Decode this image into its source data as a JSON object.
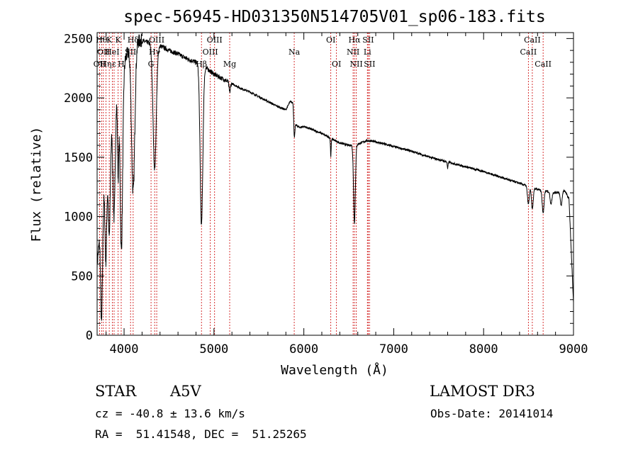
{
  "info": {
    "object_class": "STAR",
    "subclass": "A5V",
    "survey": "LAMOST DR3",
    "velocity": "cz = -40.8 ± 13.6 km/s",
    "obs_date": "Obs-Date: 20141014",
    "coords": "RA =  51.41548, DEC =  51.25265"
  },
  "colors": {
    "spectrum": "#000000",
    "line_marker": "#cc0000",
    "axes": "#000000"
  },
  "chart_data": {
    "type": "line",
    "title": "spec-56945-HD031350N514705V01_sp06-183.fits",
    "xlabel": "Wavelength (Å)",
    "ylabel": "Flux (relative)",
    "xlim": [
      3700,
      9000
    ],
    "ylim": [
      0,
      2550
    ],
    "xticks": [
      4000,
      5000,
      6000,
      7000,
      8000,
      9000
    ],
    "yticks": [
      0,
      500,
      1000,
      1500,
      2000,
      2500
    ],
    "continuum": [
      [
        3700,
        600
      ],
      [
        3750,
        1000
      ],
      [
        3800,
        1450
      ],
      [
        3850,
        1700
      ],
      [
        3900,
        1950
      ],
      [
        3950,
        2150
      ],
      [
        4000,
        2300
      ],
      [
        4050,
        2400
      ],
      [
        4100,
        2450
      ],
      [
        4150,
        2480
      ],
      [
        4200,
        2480
      ],
      [
        4250,
        2470
      ],
      [
        4300,
        2460
      ],
      [
        4350,
        2450
      ],
      [
        4400,
        2440
      ],
      [
        4450,
        2420
      ],
      [
        4500,
        2400
      ],
      [
        4600,
        2370
      ],
      [
        4700,
        2330
      ],
      [
        4800,
        2300
      ],
      [
        4900,
        2260
      ],
      [
        5000,
        2200
      ],
      [
        5100,
        2160
      ],
      [
        5200,
        2120
      ],
      [
        5300,
        2080
      ],
      [
        5400,
        2050
      ],
      [
        5500,
        2010
      ],
      [
        5600,
        1970
      ],
      [
        5700,
        1930
      ],
      [
        5800,
        1900
      ],
      [
        5850,
        1970
      ],
      [
        5880,
        1960
      ],
      [
        5900,
        1780
      ],
      [
        5950,
        1750
      ],
      [
        6000,
        1760
      ],
      [
        6100,
        1730
      ],
      [
        6200,
        1700
      ],
      [
        6300,
        1660
      ],
      [
        6400,
        1620
      ],
      [
        6500,
        1600
      ],
      [
        6600,
        1610
      ],
      [
        6700,
        1640
      ],
      [
        6800,
        1630
      ],
      [
        7000,
        1590
      ],
      [
        7200,
        1550
      ],
      [
        7400,
        1500
      ],
      [
        7600,
        1460
      ],
      [
        7800,
        1420
      ],
      [
        8000,
        1380
      ],
      [
        8200,
        1330
      ],
      [
        8400,
        1280
      ],
      [
        8600,
        1230
      ],
      [
        8800,
        1200
      ],
      [
        8900,
        1220
      ],
      [
        8950,
        1150
      ],
      [
        9000,
        270
      ]
    ],
    "absorption": [
      {
        "w": 3750,
        "depth": 900,
        "width": 10
      },
      {
        "w": 3798,
        "depth": 800,
        "width": 10
      },
      {
        "w": 3835,
        "depth": 800,
        "width": 11
      },
      {
        "w": 3889,
        "depth": 900,
        "width": 12
      },
      {
        "w": 3934,
        "depth": 700,
        "width": 7
      },
      {
        "w": 3970,
        "depth": 1500,
        "width": 14
      },
      {
        "w": 4101,
        "depth": 1250,
        "width": 18
      },
      {
        "w": 4340,
        "depth": 1050,
        "width": 18
      },
      {
        "w": 4861,
        "depth": 1350,
        "width": 15
      },
      {
        "w": 5175,
        "depth": 80,
        "width": 8
      },
      {
        "w": 5893,
        "depth": 160,
        "width": 6
      },
      {
        "w": 6300,
        "depth": 150,
        "width": 4
      },
      {
        "w": 6563,
        "depth": 660,
        "width": 10
      },
      {
        "w": 7600,
        "depth": 60,
        "width": 4
      },
      {
        "w": 8498,
        "depth": 150,
        "width": 10
      },
      {
        "w": 8542,
        "depth": 180,
        "width": 10
      },
      {
        "w": 8662,
        "depth": 190,
        "width": 10
      },
      {
        "w": 8750,
        "depth": 100,
        "width": 10
      },
      {
        "w": 8863,
        "depth": 120,
        "width": 10
      }
    ],
    "line_markers": [
      {
        "w": 3727,
        "label": "OII",
        "row": 2
      },
      {
        "w": 3750,
        "label": "Hθ",
        "row": 0
      },
      {
        "w": 3770,
        "label": "OII",
        "row": 1
      },
      {
        "w": 3798,
        "label": "Hη",
        "row": 2
      },
      {
        "w": 3835,
        "label": "K",
        "row": 0
      },
      {
        "w": 3869,
        "label": "HeI",
        "row": 1
      },
      {
        "w": 3889,
        "label": "ε",
        "row": 2
      },
      {
        "w": 3934,
        "label": "K",
        "row": 0
      },
      {
        "w": 3968,
        "label": "H",
        "row": 2
      },
      {
        "w": 4072,
        "label": "SII",
        "row": 1
      },
      {
        "w": 4101,
        "label": "Hδ",
        "row": 0
      },
      {
        "w": 4300,
        "label": "G",
        "row": 2
      },
      {
        "w": 4340,
        "label": "Hγ",
        "row": 1
      },
      {
        "w": 4363,
        "label": "OIII",
        "row": 0
      },
      {
        "w": 4861,
        "label": "Hβ",
        "row": 2
      },
      {
        "w": 4959,
        "label": "OIII",
        "row": 1
      },
      {
        "w": 5007,
        "label": "OIII",
        "row": 0
      },
      {
        "w": 5175,
        "label": "Mg",
        "row": 2
      },
      {
        "w": 5893,
        "label": "Na",
        "row": 1
      },
      {
        "w": 6300,
        "label": "OI",
        "row": 0
      },
      {
        "w": 6363,
        "label": "OI",
        "row": 2
      },
      {
        "w": 6548,
        "label": "NII",
        "row": 1
      },
      {
        "w": 6563,
        "label": "Hα",
        "row": 0
      },
      {
        "w": 6583,
        "label": "NII",
        "row": 2
      },
      {
        "w": 6707,
        "label": "Li",
        "row": 1
      },
      {
        "w": 6716,
        "label": "SII",
        "row": 0
      },
      {
        "w": 6731,
        "label": "SII",
        "row": 2
      },
      {
        "w": 8498,
        "label": "CaII",
        "row": 1
      },
      {
        "w": 8542,
        "label": "CaII",
        "row": 0
      },
      {
        "w": 8662,
        "label": "CaII",
        "row": 2
      }
    ]
  }
}
